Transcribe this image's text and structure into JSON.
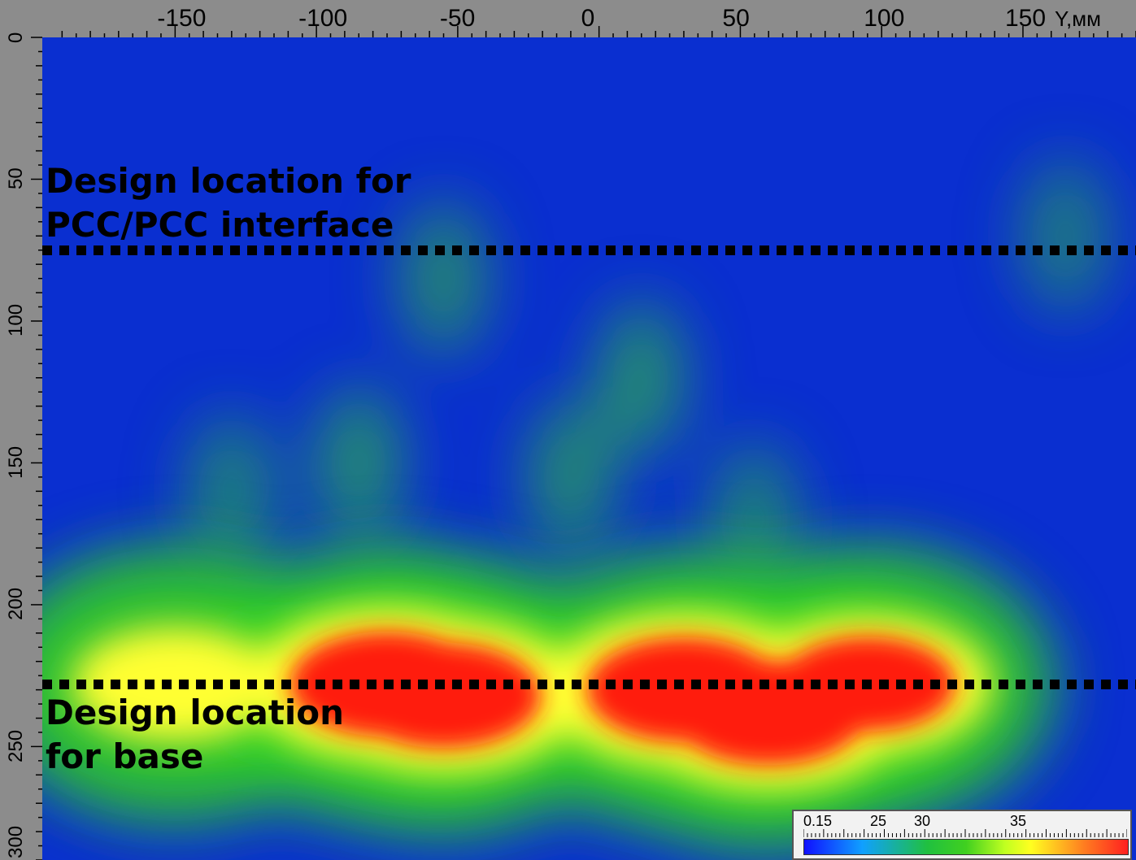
{
  "chart_data": {
    "type": "heatmap",
    "title": "",
    "xlabel": "Y,мм",
    "ylabel": "",
    "x_ticks": [
      "-150",
      "-100",
      "-50",
      "0",
      "50",
      "100",
      "150"
    ],
    "y_ticks": [
      "0",
      "50",
      "100",
      "150",
      "200",
      "250",
      "300"
    ],
    "xlim": [
      -197,
      190
    ],
    "ylim": [
      0,
      290
    ],
    "colorbar": {
      "tick_labels": [
        "0.15",
        "25",
        "30",
        "35"
      ],
      "colors": [
        "#1010ff",
        "#10a0ff",
        "#20c040",
        "#40d020",
        "#c0ff20",
        "#ffff20",
        "#ff8020",
        "#ff2020"
      ]
    },
    "hotspots": [
      {
        "x": -75,
        "y": 228,
        "intensity": 1.0
      },
      {
        "x": -55,
        "y": 232,
        "intensity": 1.0
      },
      {
        "x": 30,
        "y": 230,
        "intensity": 1.0
      },
      {
        "x": 60,
        "y": 238,
        "intensity": 1.0
      },
      {
        "x": 95,
        "y": 228,
        "intensity": 0.9
      },
      {
        "x": -150,
        "y": 228,
        "intensity": 0.75
      }
    ],
    "weak_features": [
      {
        "x": -55,
        "y": 85,
        "intensity": 0.35
      },
      {
        "x": 15,
        "y": 120,
        "intensity": 0.4
      },
      {
        "x": -10,
        "y": 155,
        "intensity": 0.38
      },
      {
        "x": -85,
        "y": 150,
        "intensity": 0.4
      },
      {
        "x": -130,
        "y": 160,
        "intensity": 0.3
      },
      {
        "x": 55,
        "y": 170,
        "intensity": 0.3
      },
      {
        "x": 165,
        "y": 70,
        "intensity": 0.25
      }
    ],
    "reference_lines": [
      {
        "y": 75,
        "label_lines": [
          "Design location for",
          "PCC/PCC interface"
        ]
      },
      {
        "y": 228,
        "label_lines": [
          "Design location",
          "for base"
        ]
      }
    ]
  }
}
